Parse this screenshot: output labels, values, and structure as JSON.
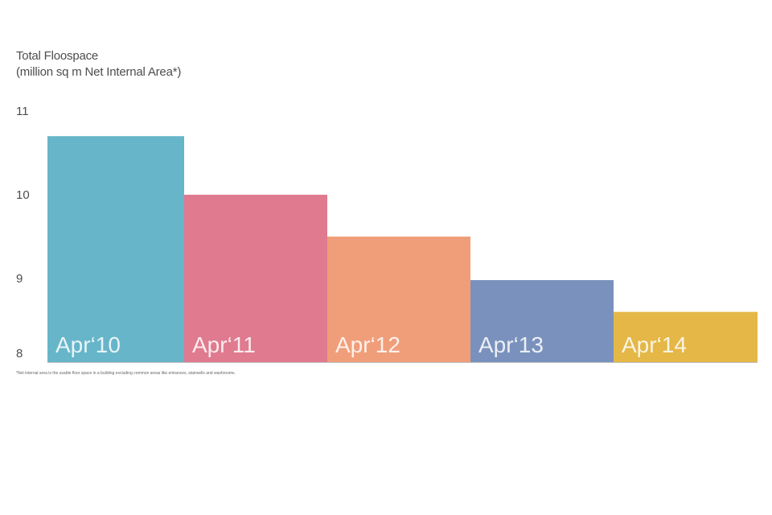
{
  "chart_data": {
    "type": "bar",
    "title": "Total Floospace",
    "subtitle": "(million sq m Net Internal Area*)",
    "categories": [
      "Apr‘10",
      "Apr‘11",
      "Apr‘12",
      "Apr‘13",
      "Apr‘14"
    ],
    "values": [
      10.7,
      10.0,
      9.5,
      8.98,
      8.6
    ],
    "colors": [
      "#67b5c9",
      "#e07a8f",
      "#f09e7a",
      "#7a91bd",
      "#e4b746"
    ],
    "ylim": [
      8,
      11
    ],
    "yticks": [
      "11",
      "10",
      "9",
      "8"
    ],
    "xlabel": "",
    "ylabel": "",
    "grid": false,
    "legend": "none",
    "footnote": "*Net internal area is the usable floor space in a building excluding common areas like entrances, stairwells and washrooms."
  }
}
